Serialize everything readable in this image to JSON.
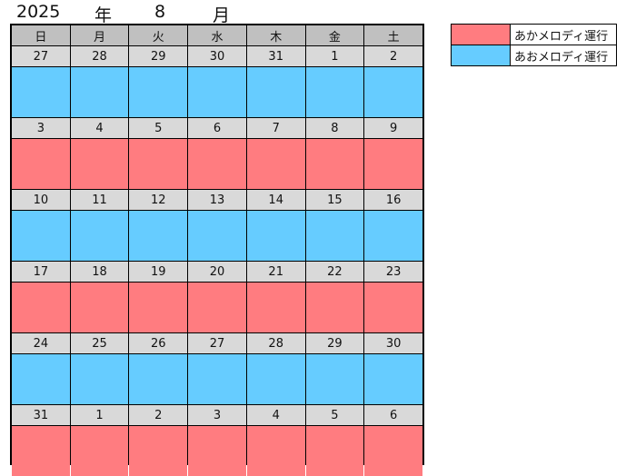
{
  "title": {
    "year": "2025",
    "nen": "年",
    "month": "8",
    "tsuki": "月"
  },
  "colors": {
    "red": "#ff7c80",
    "blue": "#66ccff",
    "header": "#c0c0c0",
    "daynum": "#d9d9d9"
  },
  "weekdays": [
    "日",
    "月",
    "火",
    "水",
    "木",
    "金",
    "土"
  ],
  "weeks": [
    {
      "days": [
        "27",
        "28",
        "29",
        "30",
        "31",
        "1",
        "2"
      ],
      "color": "blue"
    },
    {
      "days": [
        "3",
        "4",
        "5",
        "6",
        "7",
        "8",
        "9"
      ],
      "color": "red"
    },
    {
      "days": [
        "10",
        "11",
        "12",
        "13",
        "14",
        "15",
        "16"
      ],
      "color": "blue"
    },
    {
      "days": [
        "17",
        "18",
        "19",
        "20",
        "21",
        "22",
        "23"
      ],
      "color": "red"
    },
    {
      "days": [
        "24",
        "25",
        "26",
        "27",
        "28",
        "29",
        "30"
      ],
      "color": "blue"
    },
    {
      "days": [
        "31",
        "1",
        "2",
        "3",
        "4",
        "5",
        "6"
      ],
      "color": "red"
    }
  ],
  "legend": [
    {
      "color": "red",
      "label": "あかメロディ運行"
    },
    {
      "color": "blue",
      "label": "あおメロディ運行"
    }
  ]
}
